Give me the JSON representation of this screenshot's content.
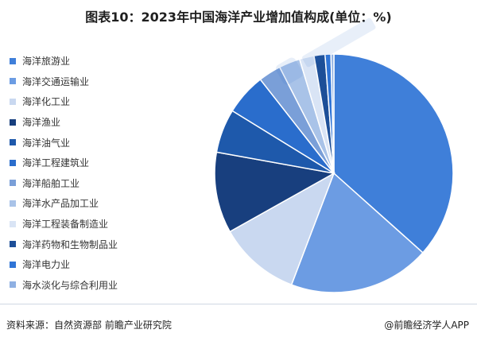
{
  "title": "图表10：2023年中国海洋产业增加值构成(单位：%)",
  "source": "资料来源：自然资源部 前瞻产业研究院",
  "brand": "@前瞻经济学人APP",
  "chart_data": {
    "type": "pie",
    "title": "图表10：2023年中国海洋产业增加值构成(单位：%)",
    "legend_position": "left",
    "start_angle_deg": 0,
    "direction": "clockwise",
    "categories": [
      "海洋旅游业",
      "海洋交通运输业",
      "海洋化工业",
      "海洋渔业",
      "海洋油气业",
      "海洋工程建筑业",
      "海洋船舶工业",
      "海洋水产品加工业",
      "海洋工程装备制造业",
      "海洋药物和生物制品业",
      "海洋电力业",
      "海水淡化与综合利用业"
    ],
    "values": [
      37.0,
      19.4,
      11.2,
      11.1,
      6.0,
      5.7,
      3.1,
      2.9,
      2.0,
      1.5,
      0.8,
      0.4
    ],
    "colors": [
      "#3f7fd9",
      "#6c9ce3",
      "#c9d8f0",
      "#183f7e",
      "#1e59ab",
      "#2a6dcc",
      "#7a9fd8",
      "#a9c3e8",
      "#d9e4f5",
      "#1d4f98",
      "#2f74d6",
      "#8fb0e2"
    ]
  }
}
